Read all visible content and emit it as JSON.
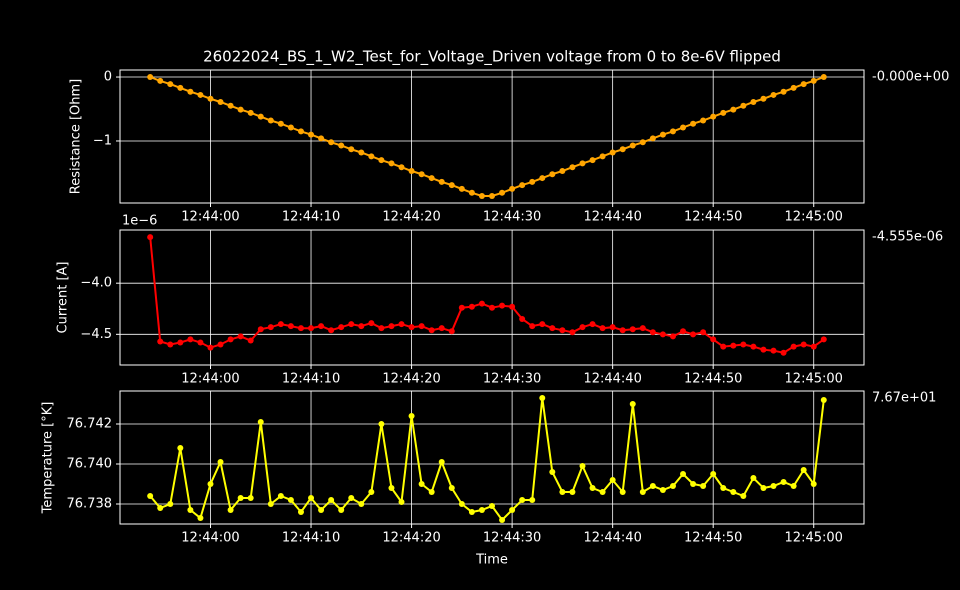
{
  "chart_data": [
    {
      "type": "line",
      "title": "26022024_BS_1_W2_Test_for_Voltage_Driven voltage from 0 to 8e-6V flipped",
      "ylabel": "Resistance [Ohm]",
      "annotation": "-0.000e+00",
      "color": "#ffa500",
      "grid": true,
      "x": [
        "12:43:54",
        "12:43:55",
        "12:43:56",
        "12:43:57",
        "12:43:58",
        "12:43:59",
        "12:44:00",
        "12:44:01",
        "12:44:02",
        "12:44:03",
        "12:44:04",
        "12:44:05",
        "12:44:06",
        "12:44:07",
        "12:44:08",
        "12:44:09",
        "12:44:10",
        "12:44:11",
        "12:44:12",
        "12:44:13",
        "12:44:14",
        "12:44:15",
        "12:44:16",
        "12:44:17",
        "12:44:18",
        "12:44:19",
        "12:44:20",
        "12:44:21",
        "12:44:22",
        "12:44:23",
        "12:44:24",
        "12:44:25",
        "12:44:26",
        "12:44:27",
        "12:44:28",
        "12:44:29",
        "12:44:30",
        "12:44:31",
        "12:44:32",
        "12:44:33",
        "12:44:34",
        "12:44:35",
        "12:44:36",
        "12:44:37",
        "12:44:38",
        "12:44:39",
        "12:44:40",
        "12:44:41",
        "12:44:42",
        "12:44:43",
        "12:44:44",
        "12:44:45",
        "12:44:46",
        "12:44:47",
        "12:44:48",
        "12:44:49",
        "12:44:50",
        "12:44:51",
        "12:44:52",
        "12:44:53",
        "12:44:54",
        "12:44:55",
        "12:44:56",
        "12:44:57",
        "12:44:58",
        "12:44:59",
        "12:45:00",
        "12:45:01"
      ],
      "values": [
        0,
        -0.06,
        -0.11,
        -0.17,
        -0.23,
        -0.28,
        -0.34,
        -0.39,
        -0.45,
        -0.51,
        -0.56,
        -0.62,
        -0.68,
        -0.73,
        -0.79,
        -0.85,
        -0.9,
        -0.96,
        -1.02,
        -1.07,
        -1.13,
        -1.18,
        -1.24,
        -1.3,
        -1.35,
        -1.41,
        -1.47,
        -1.52,
        -1.58,
        -1.64,
        -1.69,
        -1.75,
        -1.81,
        -1.86,
        -1.86,
        -1.81,
        -1.75,
        -1.69,
        -1.64,
        -1.58,
        -1.52,
        -1.47,
        -1.41,
        -1.35,
        -1.3,
        -1.24,
        -1.18,
        -1.13,
        -1.07,
        -1.02,
        -0.96,
        -0.9,
        -0.85,
        -0.79,
        -0.73,
        -0.68,
        -0.62,
        -0.56,
        -0.51,
        -0.45,
        -0.39,
        -0.34,
        -0.28,
        -0.23,
        -0.17,
        -0.11,
        -0.06,
        0
      ],
      "xlim": [
        "12:43:51",
        "12:45:05"
      ],
      "xticks": [
        "12:44:00",
        "12:44:10",
        "12:44:20",
        "12:44:30",
        "12:44:40",
        "12:44:50",
        "12:45:00"
      ],
      "ylim": [
        -1.97,
        0.11
      ],
      "yticks": [
        0,
        {
          "value": -1,
          "label": "−1"
        }
      ]
    },
    {
      "type": "line",
      "ylabel": "Current [A]",
      "annotation": "-4.555e-06",
      "offset_text": "1e−6",
      "color": "#ff0000",
      "grid": true,
      "x": [
        "12:43:54",
        "12:43:55",
        "12:43:56",
        "12:43:57",
        "12:43:58",
        "12:43:59",
        "12:44:00",
        "12:44:01",
        "12:44:02",
        "12:44:03",
        "12:44:04",
        "12:44:05",
        "12:44:06",
        "12:44:07",
        "12:44:08",
        "12:44:09",
        "12:44:10",
        "12:44:11",
        "12:44:12",
        "12:44:13",
        "12:44:14",
        "12:44:15",
        "12:44:16",
        "12:44:17",
        "12:44:18",
        "12:44:19",
        "12:44:20",
        "12:44:21",
        "12:44:22",
        "12:44:23",
        "12:44:24",
        "12:44:25",
        "12:44:26",
        "12:44:27",
        "12:44:28",
        "12:44:29",
        "12:44:30",
        "12:44:31",
        "12:44:32",
        "12:44:33",
        "12:44:34",
        "12:44:35",
        "12:44:36",
        "12:44:37",
        "12:44:38",
        "12:44:39",
        "12:44:40",
        "12:44:41",
        "12:44:42",
        "12:44:43",
        "12:44:44",
        "12:44:45",
        "12:44:46",
        "12:44:47",
        "12:44:48",
        "12:44:49",
        "12:44:50",
        "12:44:51",
        "12:44:52",
        "12:44:53",
        "12:44:54",
        "12:44:55",
        "12:44:56",
        "12:44:57",
        "12:44:58",
        "12:44:59",
        "12:45:00",
        "12:45:01"
      ],
      "values": [
        -3.55,
        -4.57,
        -4.6,
        -4.58,
        -4.55,
        -4.58,
        -4.63,
        -4.6,
        -4.55,
        -4.52,
        -4.56,
        -4.45,
        -4.43,
        -4.4,
        -4.42,
        -4.44,
        -4.44,
        -4.42,
        -4.46,
        -4.43,
        -4.4,
        -4.42,
        -4.39,
        -4.44,
        -4.42,
        -4.4,
        -4.43,
        -4.42,
        -4.46,
        -4.44,
        -4.47,
        -4.24,
        -4.23,
        -4.2,
        -4.24,
        -4.22,
        -4.23,
        -4.35,
        -4.42,
        -4.4,
        -4.44,
        -4.46,
        -4.48,
        -4.43,
        -4.4,
        -4.44,
        -4.43,
        -4.46,
        -4.45,
        -4.44,
        -4.48,
        -4.5,
        -4.52,
        -4.47,
        -4.5,
        -4.48,
        -4.55,
        -4.62,
        -4.61,
        -4.6,
        -4.62,
        -4.65,
        -4.66,
        -4.68,
        -4.62,
        -4.6,
        -4.62,
        -4.55
      ],
      "xlim": [
        "12:43:51",
        "12:45:05"
      ],
      "xticks": [
        "12:44:00",
        "12:44:10",
        "12:44:20",
        "12:44:30",
        "12:44:40",
        "12:44:50",
        "12:45:00"
      ],
      "ylim": [
        -4.8,
        -3.48
      ],
      "yticks": [
        {
          "value": -4.0,
          "label": "−4.0"
        },
        {
          "value": -4.5,
          "label": "−4.5"
        }
      ]
    },
    {
      "type": "line",
      "ylabel": "Temperature [°K]",
      "xlabel": "Time",
      "annotation": "7.67e+01",
      "color": "#ffff00",
      "grid": true,
      "x": [
        "12:43:54",
        "12:43:55",
        "12:43:56",
        "12:43:57",
        "12:43:58",
        "12:43:59",
        "12:44:00",
        "12:44:01",
        "12:44:02",
        "12:44:03",
        "12:44:04",
        "12:44:05",
        "12:44:06",
        "12:44:07",
        "12:44:08",
        "12:44:09",
        "12:44:10",
        "12:44:11",
        "12:44:12",
        "12:44:13",
        "12:44:14",
        "12:44:15",
        "12:44:16",
        "12:44:17",
        "12:44:18",
        "12:44:19",
        "12:44:20",
        "12:44:21",
        "12:44:22",
        "12:44:23",
        "12:44:24",
        "12:44:25",
        "12:44:26",
        "12:44:27",
        "12:44:28",
        "12:44:29",
        "12:44:30",
        "12:44:31",
        "12:44:32",
        "12:44:33",
        "12:44:34",
        "12:44:35",
        "12:44:36",
        "12:44:37",
        "12:44:38",
        "12:44:39",
        "12:44:40",
        "12:44:41",
        "12:44:42",
        "12:44:43",
        "12:44:44",
        "12:44:45",
        "12:44:46",
        "12:44:47",
        "12:44:48",
        "12:44:49",
        "12:44:50",
        "12:44:51",
        "12:44:52",
        "12:44:53",
        "12:44:54",
        "12:44:55",
        "12:44:56",
        "12:44:57",
        "12:44:58",
        "12:44:59",
        "12:45:00",
        "12:45:01"
      ],
      "values": [
        76.7384,
        76.7378,
        76.738,
        76.7408,
        76.7377,
        76.7373,
        76.739,
        76.7401,
        76.7377,
        76.7383,
        76.7383,
        76.7421,
        76.738,
        76.7384,
        76.7382,
        76.7376,
        76.7383,
        76.7377,
        76.7382,
        76.7377,
        76.7383,
        76.738,
        76.7386,
        76.742,
        76.7388,
        76.7381,
        76.7424,
        76.739,
        76.7386,
        76.7401,
        76.7388,
        76.738,
        76.7376,
        76.7377,
        76.7379,
        76.7372,
        76.7377,
        76.7382,
        76.7382,
        76.7433,
        76.7396,
        76.7386,
        76.7386,
        76.7399,
        76.7388,
        76.7386,
        76.7392,
        76.7386,
        76.743,
        76.7386,
        76.7389,
        76.7387,
        76.7389,
        76.7395,
        76.739,
        76.7389,
        76.7395,
        76.7388,
        76.7386,
        76.7384,
        76.7393,
        76.7388,
        76.7389,
        76.7391,
        76.7389,
        76.7397,
        76.739,
        76.7432
      ],
      "xlim": [
        "12:43:51",
        "12:45:05"
      ],
      "xticks": [
        "12:44:00",
        "12:44:10",
        "12:44:20",
        "12:44:30",
        "12:44:40",
        "12:44:50",
        "12:45:00"
      ],
      "ylim": [
        76.737,
        76.74365
      ],
      "yticks": [
        {
          "value": 76.742,
          "label": "76.742"
        },
        {
          "value": 76.74,
          "label": "76.740"
        },
        76.738
      ]
    }
  ]
}
